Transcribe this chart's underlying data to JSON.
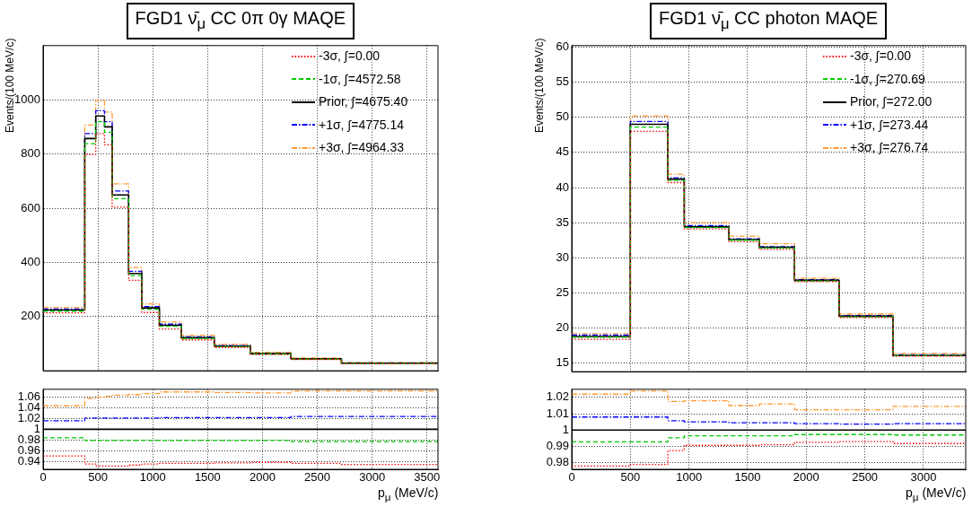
{
  "chart_data": [
    {
      "type": "histogram",
      "title": "FGD1 ν̄$_{μ}$ CC 0π 0γ MAQE",
      "ylabel": "Events/(100 MeV/c)",
      "bins": [
        0,
        380,
        480,
        560,
        630,
        780,
        900,
        1060,
        1260,
        1560,
        1890,
        2260,
        2720,
        3600
      ],
      "series": [
        {
          "name": "-3σ, ∫=0.00",
          "color": "#ff0000",
          "line_style": "dotted",
          "values": [
            214,
            798,
            875,
            834,
            604,
            334,
            215,
            154,
            114,
            86,
            60,
            42,
            26
          ]
        },
        {
          "name": "-1σ, ∫=4572.58",
          "color": "#00cc00",
          "line_style": "dashed",
          "values": [
            220,
            838,
            919,
            880,
            635,
            351,
            227,
            164,
            119,
            89,
            62,
            43,
            27
          ]
        },
        {
          "name": "Prior, ∫=4675.40",
          "color": "#000000",
          "line_style": "solid",
          "values": [
            224,
            857,
            940,
            900,
            649,
            359,
            232,
            168,
            122,
            91,
            63,
            44,
            28
          ]
        },
        {
          "name": "+1σ, ∫=4775.14",
          "color": "#0000ff",
          "line_style": "dashdot",
          "values": [
            228,
            875,
            960,
            919,
            663,
            367,
            237,
            172,
            125,
            93,
            64,
            45,
            29
          ]
        },
        {
          "name": "+3σ, ∫=4964.33",
          "color": "#ff9933",
          "line_style": "dashdot",
          "values": [
            234,
            907,
            998,
            955,
            690,
            381,
            247,
            180,
            131,
            98,
            68,
            47,
            30
          ]
        }
      ],
      "xlim": [
        0,
        3600
      ],
      "ylim": [
        0,
        1200
      ],
      "xticks": [
        0,
        500,
        1000,
        1500,
        2000,
        2500,
        3000,
        3500
      ],
      "yticks": [
        200,
        400,
        600,
        800,
        1000
      ],
      "grid": true,
      "legend": "top right",
      "tick_labels": "y"
    },
    {
      "type": "histogram",
      "xlabel": "p$_{μ}$ (MeV/c)",
      "bins": [
        0,
        380,
        480,
        560,
        630,
        780,
        900,
        1060,
        1260,
        1560,
        1890,
        2260,
        2720,
        3600
      ],
      "series": [
        {
          "color": "#ff0000",
          "line_style": "dotted",
          "values": [
            0.95,
            0.935,
            0.931,
            0.931,
            0.931,
            0.933,
            0.935,
            0.936,
            0.936,
            0.937,
            0.938,
            0.936,
            0.934
          ]
        },
        {
          "color": "#00cc00",
          "line_style": "dashed",
          "values": [
            0.984,
            0.979,
            0.979,
            0.979,
            0.979,
            0.979,
            0.979,
            0.979,
            0.979,
            0.979,
            0.979,
            0.977,
            0.977
          ]
        },
        {
          "color": "#0000ff",
          "line_style": "dashdot",
          "values": [
            1.016,
            1.021,
            1.021,
            1.021,
            1.021,
            1.021,
            1.021,
            1.022,
            1.022,
            1.022,
            1.022,
            1.024,
            1.024
          ]
        },
        {
          "color": "#ff9933",
          "line_style": "dashdot",
          "values": [
            1.044,
            1.058,
            1.06,
            1.062,
            1.064,
            1.065,
            1.067,
            1.07,
            1.07,
            1.069,
            1.068,
            1.072,
            1.072
          ]
        }
      ],
      "ref_lines": [
        {
          "axis": "y",
          "value": 1,
          "color": "#000000"
        }
      ],
      "xlim": [
        0,
        3600
      ],
      "ylim": [
        0.925,
        1.075
      ],
      "xticks": [
        0,
        500,
        1000,
        1500,
        2000,
        2500,
        3000,
        3500
      ],
      "yticks": [
        0.94,
        0.96,
        0.98,
        1,
        1.02,
        1.04,
        1.06
      ],
      "grid": true
    },
    {
      "type": "histogram",
      "title": "FGD1 ν̄$_{μ}$ CC photon MAQE",
      "ylabel": "Events/(100 MeV/c)",
      "bins": [
        0,
        500,
        820,
        960,
        1340,
        1600,
        1900,
        2280,
        2740,
        3360
      ],
      "series": [
        {
          "name": "-3σ, ∫=0.00",
          "color": "#ff0000",
          "line_style": "dotted",
          "values": [
            18.4,
            48.0,
            40.7,
            34.1,
            32.3,
            31.2,
            26.6,
            21.5,
            16.0
          ]
        },
        {
          "name": "-1σ, ∫=270.69",
          "color": "#00cc00",
          "line_style": "dashed",
          "values": [
            18.7,
            48.6,
            41.0,
            34.3,
            32.5,
            31.4,
            26.7,
            21.6,
            16.1
          ]
        },
        {
          "name": "Prior, ∫=272.00",
          "color": "#000000",
          "line_style": "solid",
          "values": [
            18.8,
            49.0,
            41.2,
            34.4,
            32.6,
            31.5,
            26.8,
            21.7,
            16.1
          ]
        },
        {
          "name": "+1σ, ∫=273.44",
          "color": "#0000ff",
          "line_style": "dashdot",
          "values": [
            19.0,
            49.4,
            41.4,
            34.6,
            32.7,
            31.6,
            26.9,
            21.8,
            16.2
          ]
        },
        {
          "name": "+3σ, ∫=276.74",
          "color": "#ff9933",
          "line_style": "dashdot",
          "values": [
            19.2,
            50.2,
            41.9,
            35.0,
            33.1,
            32.0,
            27.1,
            22.0,
            16.4
          ]
        }
      ],
      "xlim": [
        0,
        3360
      ],
      "ylim": [
        13.8,
        60.2
      ],
      "xticks": [
        0,
        500,
        1000,
        1500,
        2000,
        2500,
        3000
      ],
      "yticks": [
        15,
        20,
        25,
        30,
        35,
        40,
        45,
        50,
        55,
        60
      ],
      "grid": true,
      "legend": "top right",
      "tick_labels": "y"
    },
    {
      "type": "histogram",
      "xlabel": "p$_{μ}$ (MeV/c)",
      "bins": [
        0,
        500,
        820,
        960,
        1340,
        1600,
        1900,
        2280,
        2740,
        3360
      ],
      "series": [
        {
          "color": "#ff0000",
          "line_style": "dotted",
          "values": [
            0.978,
            0.979,
            0.9875,
            0.9907,
            0.9907,
            0.991,
            0.9925,
            0.993,
            0.9918
          ]
        },
        {
          "color": "#00cc00",
          "line_style": "dashed",
          "values": [
            0.9928,
            0.9928,
            0.9953,
            0.9965,
            0.9965,
            0.9965,
            0.9973,
            0.9973,
            0.997
          ]
        },
        {
          "color": "#0000ff",
          "line_style": "dashdot",
          "values": [
            1.008,
            1.008,
            1.0057,
            1.005,
            1.0045,
            1.0045,
            1.004,
            1.0037,
            1.004
          ]
        },
        {
          "color": "#ff9933",
          "line_style": "dashdot",
          "values": [
            1.022,
            1.024,
            1.0175,
            1.018,
            1.015,
            1.016,
            1.0125,
            1.0125,
            1.0145
          ]
        }
      ],
      "ref_lines": [
        {
          "axis": "y",
          "value": 1,
          "color": "#000000"
        }
      ],
      "xlim": [
        0,
        3360
      ],
      "ylim": [
        0.976,
        1.025
      ],
      "xticks": [
        0,
        500,
        1000,
        1500,
        2000,
        2500,
        3000
      ],
      "yticks": [
        0.98,
        0.99,
        1,
        1.01,
        1.02
      ],
      "grid": true
    }
  ]
}
